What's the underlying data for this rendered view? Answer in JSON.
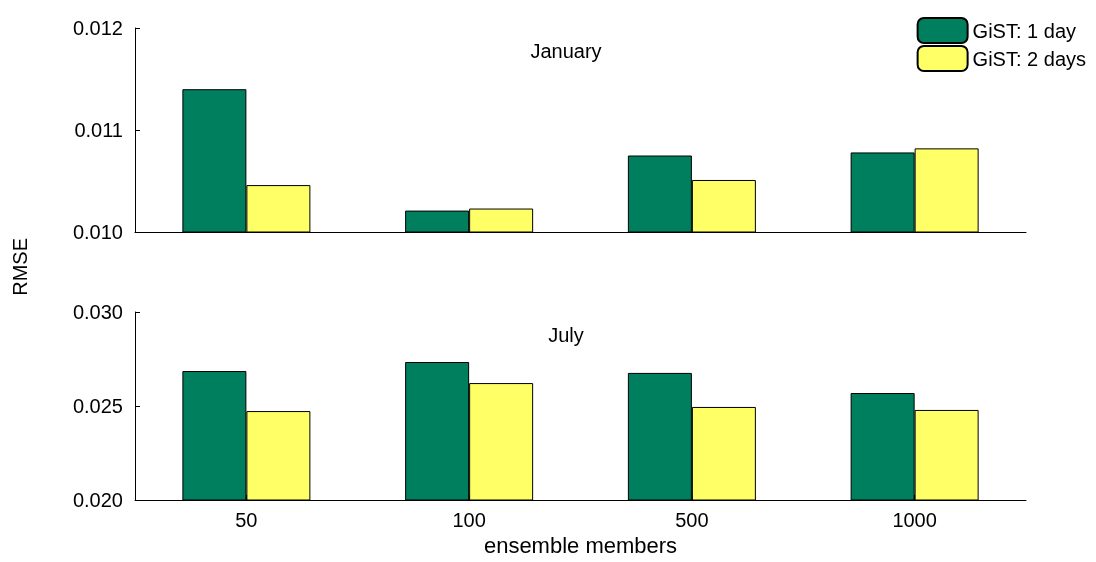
{
  "chart_data": [
    {
      "type": "bar",
      "title": "January",
      "ylabel": "RMSE",
      "categories": [
        "50",
        "100",
        "500",
        "1000"
      ],
      "series": [
        {
          "name": "GiST: 1 day",
          "color": "#007f5f",
          "values": [
            0.0114,
            0.01021,
            0.01075,
            0.01078
          ]
        },
        {
          "name": "GiST: 2 days",
          "color": "#ffff66",
          "values": [
            0.01046,
            0.01023,
            0.01051,
            0.01082
          ]
        }
      ],
      "ylim": [
        0.01,
        0.012
      ],
      "yticks": [
        {
          "value": 0.01,
          "label": "0.010"
        },
        {
          "value": 0.011,
          "label": "0.011"
        },
        {
          "value": 0.012,
          "label": "0.012"
        }
      ],
      "legend": "top right",
      "grid": false,
      "tick_labels": "y"
    },
    {
      "type": "bar",
      "title": "July",
      "xlabel": "ensemble members",
      "categories": [
        "50",
        "100",
        "500",
        "1000"
      ],
      "series": [
        {
          "color": "#007f5f",
          "values": [
            0.02686,
            0.02734,
            0.02676,
            0.02569
          ]
        },
        {
          "color": "#ffff66",
          "values": [
            0.02473,
            0.02622,
            0.02495,
            0.02479
          ]
        }
      ],
      "ylim": [
        0.02,
        0.03
      ],
      "yticks": [
        {
          "value": 0.02,
          "label": "0.020"
        },
        {
          "value": 0.025,
          "label": "0.025"
        },
        {
          "value": 0.03,
          "label": "0.030"
        }
      ],
      "legend": false,
      "grid": false
    }
  ]
}
